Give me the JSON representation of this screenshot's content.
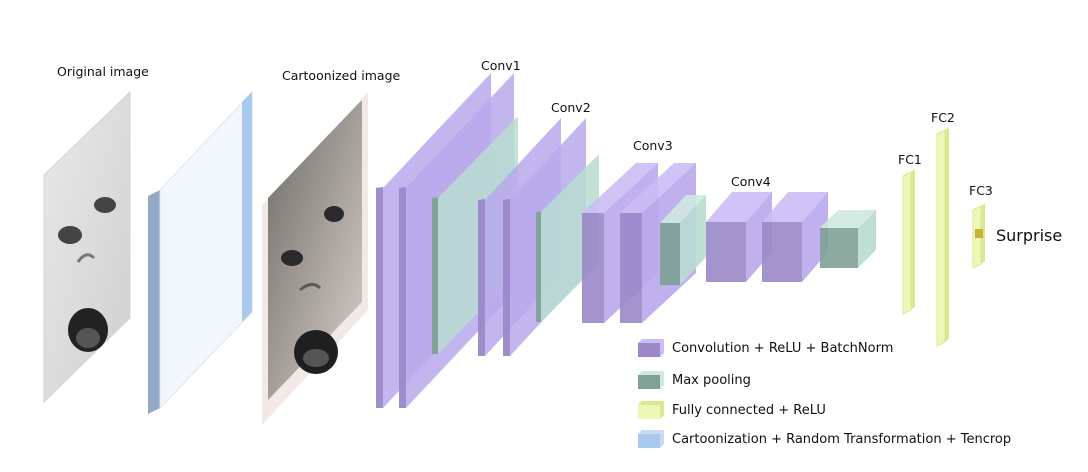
{
  "labels": {
    "original": "Original image",
    "cartoonized": "Cartoonized image",
    "conv1": "Conv1",
    "conv2": "Conv2",
    "conv3": "Conv3",
    "conv4": "Conv4",
    "fc1": "FC1",
    "fc2": "FC2",
    "fc3": "FC3",
    "output": "Surprise"
  },
  "legend": [
    {
      "kind": "conv",
      "label": "Convolution + ReLU + BatchNorm"
    },
    {
      "kind": "pool",
      "label": "Max pooling"
    },
    {
      "kind": "fc",
      "label": "Fully connected + ReLU"
    },
    {
      "kind": "aug",
      "label": "Cartoonization + Random Transformation + Tencrop"
    }
  ],
  "colors": {
    "conv_front": "#b9a9ec",
    "conv_side": "#9a88c8",
    "conv_top": "#cbbdf4",
    "pool_front": "#b8dcd0",
    "pool_side": "#7fa196",
    "pool_top": "#cfe9df",
    "fc": "#eef7b8",
    "fc_edge": "#dbe88c",
    "aug_front": "#f2f7fd",
    "aug_edge": "#a9c9ef",
    "aug_side": "#93a9c6"
  }
}
